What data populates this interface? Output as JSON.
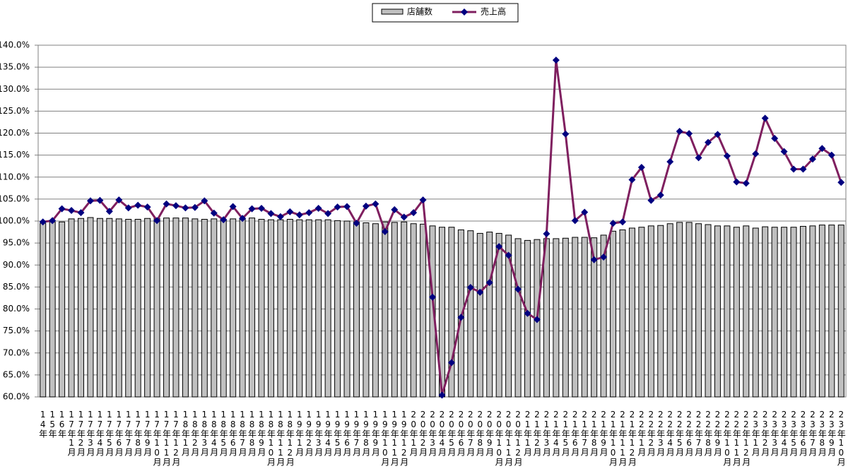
{
  "chart_data": {
    "type": "bar-line",
    "categories": [
      "14年",
      "15年",
      "16年",
      "17年1月",
      "17年2月",
      "17年3月",
      "17年4月",
      "17年5月",
      "17年6月",
      "17年7月",
      "17年8月",
      "17年9月",
      "17年10月",
      "17年11月",
      "17年12月",
      "18年1月",
      "18年2月",
      "18年3月",
      "18年4月",
      "18年5月",
      "18年6月",
      "18年7月",
      "18年8月",
      "18年9月",
      "18年10月",
      "18年11月",
      "18年12月",
      "19年1月",
      "19年2月",
      "19年3月",
      "19年4月",
      "19年5月",
      "19年6月",
      "19年7月",
      "19年8月",
      "19年9月",
      "19年10月",
      "19年11月",
      "19年12月",
      "20年1月",
      "20年2月",
      "20年3月",
      "20年4月",
      "20年5月",
      "20年6月",
      "20年7月",
      "20年8月",
      "20年9月",
      "20年10月",
      "20年11月",
      "20年12月",
      "21年1月",
      "21年2月",
      "21年3月",
      "21年4月",
      "21年5月",
      "21年6月",
      "21年7月",
      "21年8月",
      "21年9月",
      "21年10月",
      "21年11月",
      "21年12月",
      "22年1月",
      "22年2月",
      "22年3月",
      "22年4月",
      "22年5月",
      "22年6月",
      "22年7月",
      "22年8月",
      "22年9月",
      "22年10月",
      "22年11月",
      "22年12月",
      "23年1月",
      "23年2月",
      "23年3月",
      "23年4月",
      "23年5月",
      "23年6月",
      "23年7月",
      "23年8月",
      "23年9月",
      "23年10月"
    ],
    "series": [
      {
        "name": "店舗数",
        "type": "bar",
        "color": "#c0c0c0",
        "values": [
          99.5,
          99.8,
          99.8,
          100.5,
          100.6,
          100.8,
          100.6,
          100.6,
          100.5,
          100.4,
          100.4,
          100.6,
          100.6,
          100.7,
          100.7,
          100.7,
          100.5,
          100.4,
          100.5,
          100.4,
          100.5,
          100.5,
          100.7,
          100.4,
          100.3,
          100.3,
          100.4,
          100.3,
          100.3,
          100.3,
          100.3,
          100.1,
          100.0,
          99.8,
          99.6,
          99.4,
          99.8,
          99.7,
          99.8,
          99.4,
          99.3,
          98.9,
          98.6,
          98.6,
          98.0,
          97.8,
          97.2,
          97.5,
          97.2,
          96.8,
          96.0,
          95.6,
          95.8,
          96.0,
          96.0,
          96.1,
          96.3,
          96.3,
          96.2,
          96.8,
          97.7,
          98.0,
          98.4,
          98.6,
          98.9,
          99.0,
          99.4,
          99.7,
          99.7,
          99.4,
          99.2,
          98.9,
          98.9,
          98.6,
          98.9,
          98.4,
          98.7,
          98.6,
          98.6,
          98.6,
          98.8,
          98.9,
          99.1,
          99.1,
          99.1
        ]
      },
      {
        "name": "売上高",
        "type": "line",
        "color": "#7f1f5f",
        "marker_color": "#000080",
        "values": [
          99.8,
          100.1,
          102.8,
          102.4,
          101.9,
          104.6,
          104.7,
          102.2,
          104.8,
          103.0,
          103.6,
          103.2,
          100.1,
          103.9,
          103.5,
          103.0,
          103.1,
          104.6,
          101.8,
          100.3,
          103.3,
          100.6,
          102.8,
          102.9,
          101.7,
          101.0,
          102.1,
          101.4,
          101.9,
          102.9,
          101.7,
          103.2,
          103.3,
          99.5,
          103.4,
          103.9,
          97.6,
          102.6,
          100.9,
          101.9,
          104.8,
          82.7,
          60.4,
          67.8,
          78.1,
          84.9,
          83.8,
          86.0,
          94.2,
          92.2,
          84.5,
          79.0,
          77.6,
          97.1,
          136.6,
          119.8,
          100.1,
          102.0,
          91.2,
          91.8,
          99.5,
          99.8,
          109.4,
          112.2,
          104.7,
          105.9,
          113.5,
          120.4,
          119.9,
          114.4,
          117.9,
          119.7,
          114.8,
          108.9,
          108.6,
          115.3,
          123.4,
          118.8,
          115.8,
          111.8,
          111.8,
          114.1,
          116.5,
          115.0,
          108.8
        ]
      }
    ],
    "ylim": [
      60,
      140
    ],
    "yticks": [
      {
        "value": 60,
        "label": "60.0%"
      },
      {
        "value": 65,
        "label": "65.0%"
      },
      {
        "value": 70,
        "label": "70.0%"
      },
      {
        "value": 75,
        "label": "75.0%"
      },
      {
        "value": 80,
        "label": "80.0%"
      },
      {
        "value": 85,
        "label": "85.0%"
      },
      {
        "value": 90,
        "label": "90.0%"
      },
      {
        "value": 95,
        "label": "95.0%"
      },
      {
        "value": 100,
        "label": "100.0%"
      },
      {
        "value": 105,
        "label": "105.0%"
      },
      {
        "value": 110,
        "label": "110.0%"
      },
      {
        "value": 115,
        "label": "115.0%"
      },
      {
        "value": 120,
        "label": "120.0%"
      },
      {
        "value": 125,
        "label": "125.0%"
      },
      {
        "value": 130,
        "label": "130.0%"
      },
      {
        "value": 135,
        "label": "135.0%"
      },
      {
        "value": 140,
        "label": "140.0%"
      }
    ],
    "grid": true,
    "legend": "top"
  }
}
